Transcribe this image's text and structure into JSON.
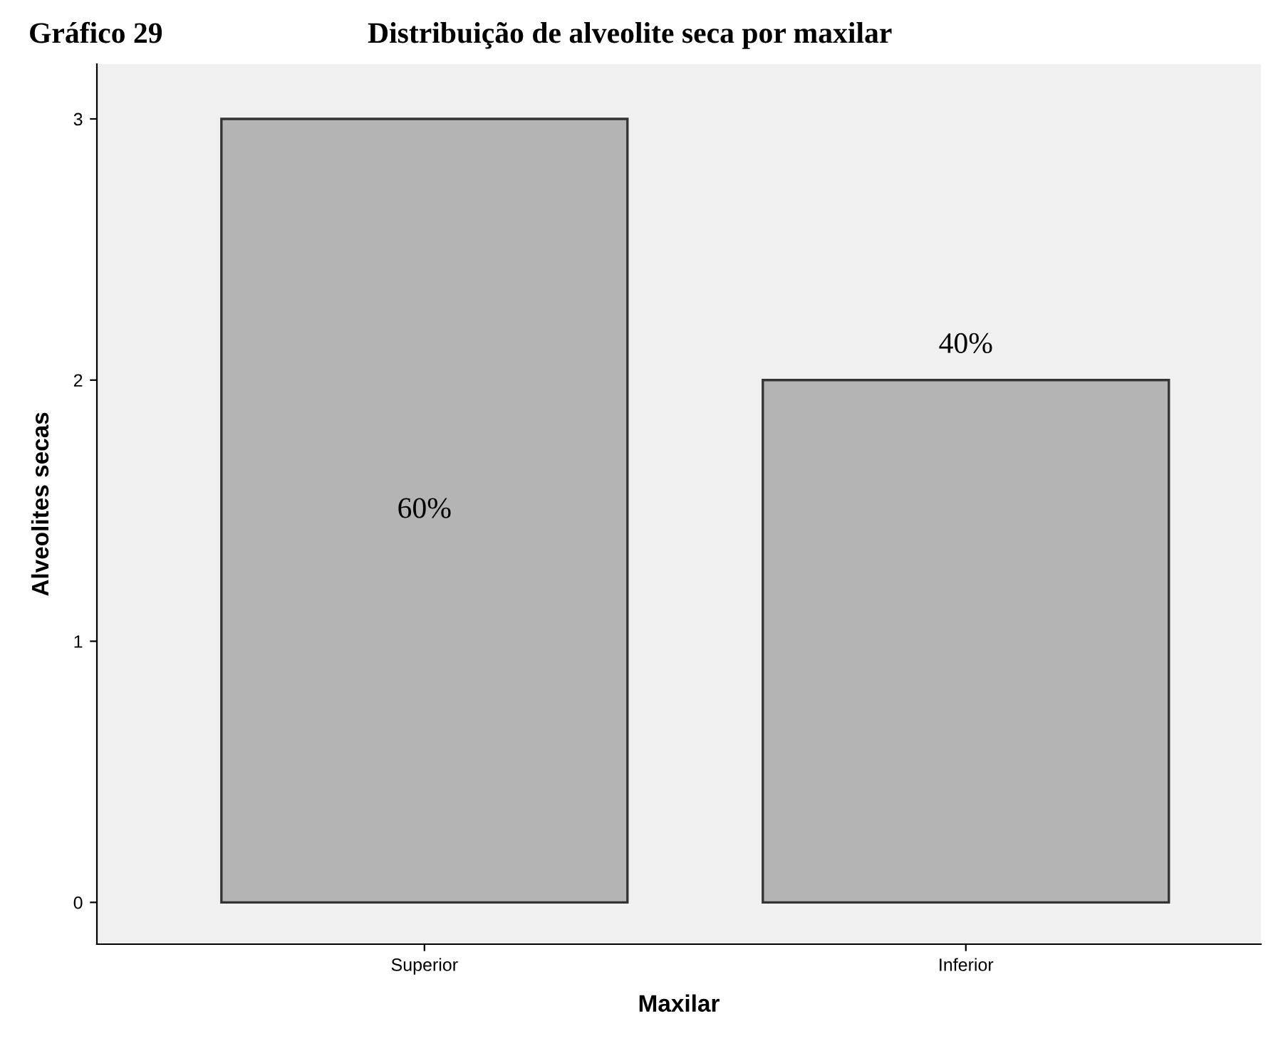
{
  "chart_data": {
    "type": "bar",
    "title": "Gráfico 29",
    "subtitle": "Distribuição de alveolite seca por maxilar",
    "xlabel": "Maxilar",
    "ylabel": "Alveolites secas",
    "categories": [
      "Superior",
      "Inferior"
    ],
    "values": [
      3,
      2
    ],
    "annotations": [
      "60%",
      "40%"
    ],
    "color": "#b4b4b4",
    "ylim": [
      -0.16,
      3.21
    ],
    "yticks": [
      0,
      1,
      2,
      3
    ],
    "grid": false
  }
}
